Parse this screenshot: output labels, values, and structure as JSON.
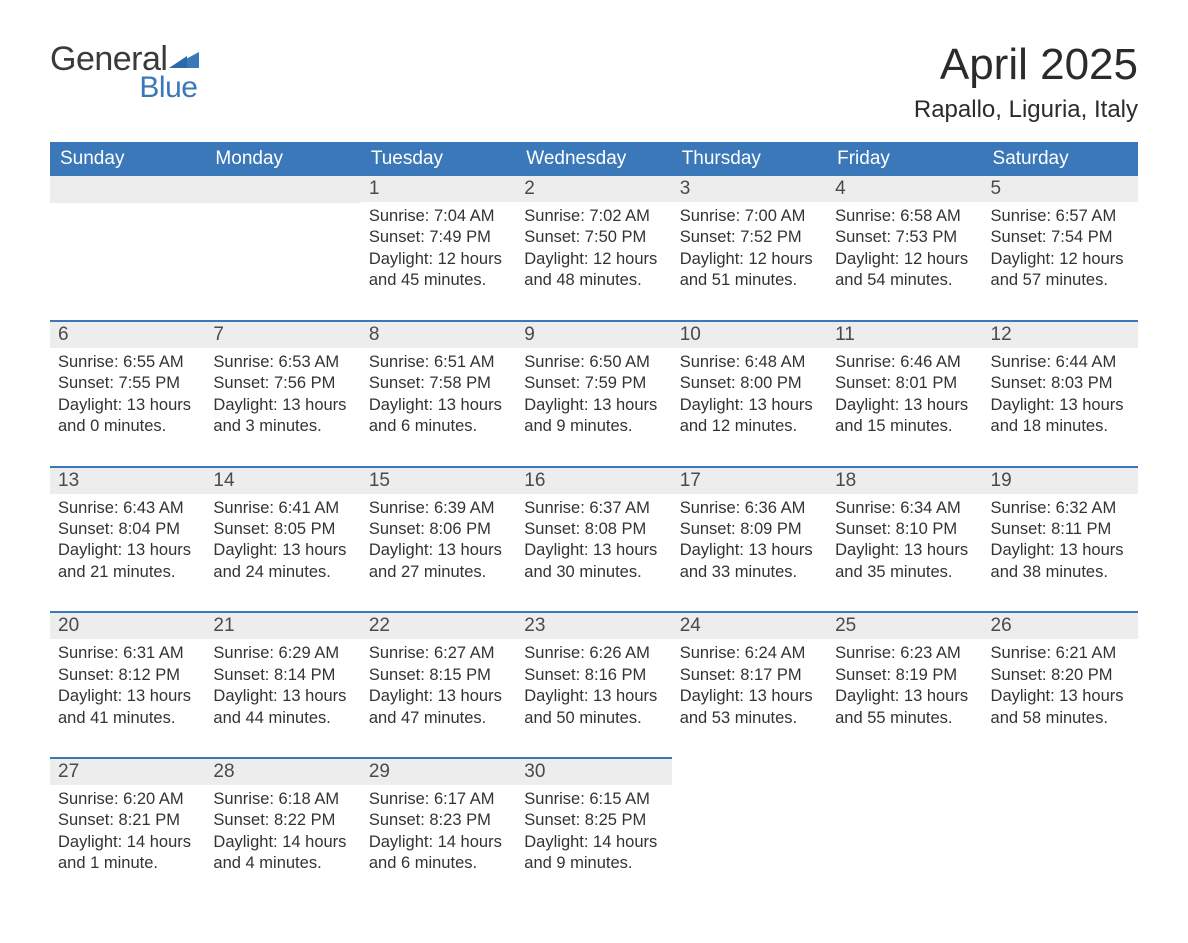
{
  "brand": {
    "general": "General",
    "blue": "Blue",
    "triangle_color": "#3a78b9"
  },
  "title": "April 2025",
  "location": "Rapallo, Liguria, Italy",
  "colors": {
    "header_bg": "#3a78b9",
    "header_text": "#ffffff",
    "daynum_bg": "#ededed",
    "row_divider": "#3a78b9",
    "body_text": "#333333",
    "background": "#ffffff"
  },
  "weekdays": [
    "Sunday",
    "Monday",
    "Tuesday",
    "Wednesday",
    "Thursday",
    "Friday",
    "Saturday"
  ],
  "weeks": [
    [
      null,
      null,
      {
        "n": "1",
        "sunrise": "Sunrise: 7:04 AM",
        "sunset": "Sunset: 7:49 PM",
        "daylight": "Daylight: 12 hours and 45 minutes."
      },
      {
        "n": "2",
        "sunrise": "Sunrise: 7:02 AM",
        "sunset": "Sunset: 7:50 PM",
        "daylight": "Daylight: 12 hours and 48 minutes."
      },
      {
        "n": "3",
        "sunrise": "Sunrise: 7:00 AM",
        "sunset": "Sunset: 7:52 PM",
        "daylight": "Daylight: 12 hours and 51 minutes."
      },
      {
        "n": "4",
        "sunrise": "Sunrise: 6:58 AM",
        "sunset": "Sunset: 7:53 PM",
        "daylight": "Daylight: 12 hours and 54 minutes."
      },
      {
        "n": "5",
        "sunrise": "Sunrise: 6:57 AM",
        "sunset": "Sunset: 7:54 PM",
        "daylight": "Daylight: 12 hours and 57 minutes."
      }
    ],
    [
      {
        "n": "6",
        "sunrise": "Sunrise: 6:55 AM",
        "sunset": "Sunset: 7:55 PM",
        "daylight": "Daylight: 13 hours and 0 minutes."
      },
      {
        "n": "7",
        "sunrise": "Sunrise: 6:53 AM",
        "sunset": "Sunset: 7:56 PM",
        "daylight": "Daylight: 13 hours and 3 minutes."
      },
      {
        "n": "8",
        "sunrise": "Sunrise: 6:51 AM",
        "sunset": "Sunset: 7:58 PM",
        "daylight": "Daylight: 13 hours and 6 minutes."
      },
      {
        "n": "9",
        "sunrise": "Sunrise: 6:50 AM",
        "sunset": "Sunset: 7:59 PM",
        "daylight": "Daylight: 13 hours and 9 minutes."
      },
      {
        "n": "10",
        "sunrise": "Sunrise: 6:48 AM",
        "sunset": "Sunset: 8:00 PM",
        "daylight": "Daylight: 13 hours and 12 minutes."
      },
      {
        "n": "11",
        "sunrise": "Sunrise: 6:46 AM",
        "sunset": "Sunset: 8:01 PM",
        "daylight": "Daylight: 13 hours and 15 minutes."
      },
      {
        "n": "12",
        "sunrise": "Sunrise: 6:44 AM",
        "sunset": "Sunset: 8:03 PM",
        "daylight": "Daylight: 13 hours and 18 minutes."
      }
    ],
    [
      {
        "n": "13",
        "sunrise": "Sunrise: 6:43 AM",
        "sunset": "Sunset: 8:04 PM",
        "daylight": "Daylight: 13 hours and 21 minutes."
      },
      {
        "n": "14",
        "sunrise": "Sunrise: 6:41 AM",
        "sunset": "Sunset: 8:05 PM",
        "daylight": "Daylight: 13 hours and 24 minutes."
      },
      {
        "n": "15",
        "sunrise": "Sunrise: 6:39 AM",
        "sunset": "Sunset: 8:06 PM",
        "daylight": "Daylight: 13 hours and 27 minutes."
      },
      {
        "n": "16",
        "sunrise": "Sunrise: 6:37 AM",
        "sunset": "Sunset: 8:08 PM",
        "daylight": "Daylight: 13 hours and 30 minutes."
      },
      {
        "n": "17",
        "sunrise": "Sunrise: 6:36 AM",
        "sunset": "Sunset: 8:09 PM",
        "daylight": "Daylight: 13 hours and 33 minutes."
      },
      {
        "n": "18",
        "sunrise": "Sunrise: 6:34 AM",
        "sunset": "Sunset: 8:10 PM",
        "daylight": "Daylight: 13 hours and 35 minutes."
      },
      {
        "n": "19",
        "sunrise": "Sunrise: 6:32 AM",
        "sunset": "Sunset: 8:11 PM",
        "daylight": "Daylight: 13 hours and 38 minutes."
      }
    ],
    [
      {
        "n": "20",
        "sunrise": "Sunrise: 6:31 AM",
        "sunset": "Sunset: 8:12 PM",
        "daylight": "Daylight: 13 hours and 41 minutes."
      },
      {
        "n": "21",
        "sunrise": "Sunrise: 6:29 AM",
        "sunset": "Sunset: 8:14 PM",
        "daylight": "Daylight: 13 hours and 44 minutes."
      },
      {
        "n": "22",
        "sunrise": "Sunrise: 6:27 AM",
        "sunset": "Sunset: 8:15 PM",
        "daylight": "Daylight: 13 hours and 47 minutes."
      },
      {
        "n": "23",
        "sunrise": "Sunrise: 6:26 AM",
        "sunset": "Sunset: 8:16 PM",
        "daylight": "Daylight: 13 hours and 50 minutes."
      },
      {
        "n": "24",
        "sunrise": "Sunrise: 6:24 AM",
        "sunset": "Sunset: 8:17 PM",
        "daylight": "Daylight: 13 hours and 53 minutes."
      },
      {
        "n": "25",
        "sunrise": "Sunrise: 6:23 AM",
        "sunset": "Sunset: 8:19 PM",
        "daylight": "Daylight: 13 hours and 55 minutes."
      },
      {
        "n": "26",
        "sunrise": "Sunrise: 6:21 AM",
        "sunset": "Sunset: 8:20 PM",
        "daylight": "Daylight: 13 hours and 58 minutes."
      }
    ],
    [
      {
        "n": "27",
        "sunrise": "Sunrise: 6:20 AM",
        "sunset": "Sunset: 8:21 PM",
        "daylight": "Daylight: 14 hours and 1 minute."
      },
      {
        "n": "28",
        "sunrise": "Sunrise: 6:18 AM",
        "sunset": "Sunset: 8:22 PM",
        "daylight": "Daylight: 14 hours and 4 minutes."
      },
      {
        "n": "29",
        "sunrise": "Sunrise: 6:17 AM",
        "sunset": "Sunset: 8:23 PM",
        "daylight": "Daylight: 14 hours and 6 minutes."
      },
      {
        "n": "30",
        "sunrise": "Sunrise: 6:15 AM",
        "sunset": "Sunset: 8:25 PM",
        "daylight": "Daylight: 14 hours and 9 minutes."
      },
      null,
      null,
      null
    ]
  ]
}
